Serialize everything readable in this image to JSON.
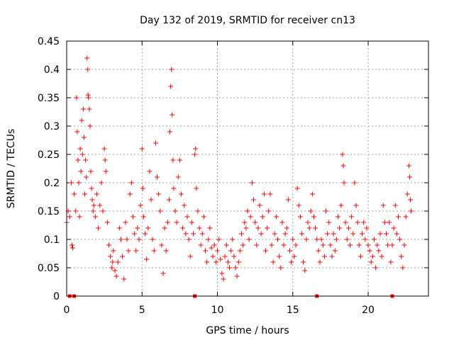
{
  "chart_data": {
    "type": "scatter",
    "title": "Day 132 of 2019, SRMTID for receiver cn13",
    "xlabel": "GPS time / hours",
    "ylabel": "SRMTID / TECUs",
    "xlim": [
      0,
      24
    ],
    "ylim": [
      0,
      0.45
    ],
    "xticks": [
      0,
      5,
      10,
      15,
      20
    ],
    "yticks": [
      0,
      0.05,
      0.1,
      0.15,
      0.2,
      0.25,
      0.3,
      0.35,
      0.4,
      0.45
    ],
    "xtick_labels": [
      "0",
      "5",
      "10",
      "15",
      "20"
    ],
    "ytick_labels": [
      "0",
      "0.05",
      "0.1",
      "0.15",
      "0.2",
      "0.25",
      "0.3",
      "0.35",
      "0.4",
      "0.45"
    ],
    "grid": true,
    "legend": false,
    "color": "#ff0000",
    "series": [
      {
        "name": "SRMTID",
        "marker": "plus",
        "points": [
          [
            0.0,
            0.13
          ],
          [
            0.1,
            0.15
          ],
          [
            0.2,
            0.14
          ],
          [
            0.3,
            0.2
          ],
          [
            0.35,
            0.09
          ],
          [
            0.4,
            0.085
          ],
          [
            0.5,
            0.18
          ],
          [
            0.6,
            0.15
          ],
          [
            0.65,
            0.35
          ],
          [
            0.7,
            0.29
          ],
          [
            0.75,
            0.24
          ],
          [
            0.8,
            0.2
          ],
          [
            0.85,
            0.14
          ],
          [
            0.9,
            0.26
          ],
          [
            0.95,
            0.22
          ],
          [
            1.0,
            0.31
          ],
          [
            1.05,
            0.25
          ],
          [
            1.1,
            0.33
          ],
          [
            1.15,
            0.28
          ],
          [
            1.2,
            0.18
          ],
          [
            1.25,
            0.24
          ],
          [
            1.3,
            0.21
          ],
          [
            1.35,
            0.42
          ],
          [
            1.4,
            0.4
          ],
          [
            1.42,
            0.355
          ],
          [
            1.45,
            0.35
          ],
          [
            1.5,
            0.33
          ],
          [
            1.55,
            0.3
          ],
          [
            1.6,
            0.22
          ],
          [
            1.65,
            0.19
          ],
          [
            1.7,
            0.17
          ],
          [
            1.75,
            0.15
          ],
          [
            1.8,
            0.16
          ],
          [
            1.9,
            0.14
          ],
          [
            2.0,
            0.18
          ],
          [
            2.1,
            0.12
          ],
          [
            2.2,
            0.16
          ],
          [
            2.3,
            0.2
          ],
          [
            2.4,
            0.15
          ],
          [
            2.5,
            0.26
          ],
          [
            2.55,
            0.24
          ],
          [
            2.6,
            0.22
          ],
          [
            2.7,
            0.13
          ],
          [
            2.8,
            0.09
          ],
          [
            2.9,
            0.07
          ],
          [
            3.0,
            0.05
          ],
          [
            3.05,
            0.06
          ],
          [
            3.1,
            0.08
          ],
          [
            3.2,
            0.045
          ],
          [
            3.3,
            0.035
          ],
          [
            3.4,
            0.06
          ],
          [
            3.5,
            0.12
          ],
          [
            3.6,
            0.1
          ],
          [
            3.7,
            0.07
          ],
          [
            3.8,
            0.03
          ],
          [
            3.9,
            0.13
          ],
          [
            4.0,
            0.1
          ],
          [
            4.1,
            0.08
          ],
          [
            4.2,
            0.18
          ],
          [
            4.3,
            0.2
          ],
          [
            4.4,
            0.14
          ],
          [
            4.5,
            0.11
          ],
          [
            4.6,
            0.08
          ],
          [
            4.7,
            0.12
          ],
          [
            4.8,
            0.1
          ],
          [
            4.9,
            0.16
          ],
          [
            5.0,
            0.26
          ],
          [
            5.05,
            0.19
          ],
          [
            5.1,
            0.14
          ],
          [
            5.2,
            0.11
          ],
          [
            5.3,
            0.065
          ],
          [
            5.4,
            0.12
          ],
          [
            5.5,
            0.22
          ],
          [
            5.6,
            0.17
          ],
          [
            5.7,
            0.1
          ],
          [
            5.8,
            0.08
          ],
          [
            5.9,
            0.27
          ],
          [
            6.0,
            0.21
          ],
          [
            6.1,
            0.18
          ],
          [
            6.2,
            0.15
          ],
          [
            6.3,
            0.09
          ],
          [
            6.4,
            0.04
          ],
          [
            6.5,
            0.12
          ],
          [
            6.6,
            0.08
          ],
          [
            6.7,
            0.13
          ],
          [
            6.8,
            0.17
          ],
          [
            6.85,
            0.29
          ],
          [
            6.9,
            0.37
          ],
          [
            6.95,
            0.4
          ],
          [
            7.0,
            0.32
          ],
          [
            7.05,
            0.24
          ],
          [
            7.1,
            0.19
          ],
          [
            7.2,
            0.15
          ],
          [
            7.3,
            0.13
          ],
          [
            7.4,
            0.21
          ],
          [
            7.5,
            0.24
          ],
          [
            7.6,
            0.18
          ],
          [
            7.7,
            0.12
          ],
          [
            7.8,
            0.16
          ],
          [
            7.9,
            0.11
          ],
          [
            8.0,
            0.14
          ],
          [
            8.1,
            0.1
          ],
          [
            8.2,
            0.07
          ],
          [
            8.3,
            0.13
          ],
          [
            8.4,
            0.11
          ],
          [
            8.5,
            0.25
          ],
          [
            8.55,
            0.26
          ],
          [
            8.6,
            0.19
          ],
          [
            8.7,
            0.15
          ],
          [
            8.8,
            0.12
          ],
          [
            8.9,
            0.09
          ],
          [
            9.0,
            0.11
          ],
          [
            9.1,
            0.14
          ],
          [
            9.2,
            0.08
          ],
          [
            9.3,
            0.06
          ],
          [
            9.4,
            0.1
          ],
          [
            9.5,
            0.12
          ],
          [
            9.6,
            0.085
          ],
          [
            9.7,
            0.07
          ],
          [
            9.8,
            0.09
          ],
          [
            9.9,
            0.06
          ],
          [
            10.0,
            0.08
          ],
          [
            10.1,
            0.1
          ],
          [
            10.2,
            0.065
          ],
          [
            10.3,
            0.04
          ],
          [
            10.4,
            0.03
          ],
          [
            10.5,
            0.07
          ],
          [
            10.6,
            0.09
          ],
          [
            10.7,
            0.06
          ],
          [
            10.8,
            0.05
          ],
          [
            10.9,
            0.08
          ],
          [
            11.0,
            0.1
          ],
          [
            11.1,
            0.07
          ],
          [
            11.2,
            0.05
          ],
          [
            11.3,
            0.035
          ],
          [
            11.4,
            0.06
          ],
          [
            11.5,
            0.08
          ],
          [
            11.6,
            0.11
          ],
          [
            11.7,
            0.09
          ],
          [
            11.8,
            0.13
          ],
          [
            11.9,
            0.12
          ],
          [
            12.0,
            0.15
          ],
          [
            12.1,
            0.1
          ],
          [
            12.2,
            0.14
          ],
          [
            12.3,
            0.2
          ],
          [
            12.4,
            0.17
          ],
          [
            12.5,
            0.13
          ],
          [
            12.6,
            0.09
          ],
          [
            12.7,
            0.12
          ],
          [
            12.8,
            0.16
          ],
          [
            12.9,
            0.11
          ],
          [
            13.0,
            0.14
          ],
          [
            13.1,
            0.18
          ],
          [
            13.2,
            0.08
          ],
          [
            13.3,
            0.12
          ],
          [
            13.4,
            0.15
          ],
          [
            13.5,
            0.18
          ],
          [
            13.6,
            0.09
          ],
          [
            13.7,
            0.06
          ],
          [
            13.8,
            0.11
          ],
          [
            13.9,
            0.14
          ],
          [
            14.0,
            0.1
          ],
          [
            14.1,
            0.07
          ],
          [
            14.2,
            0.05
          ],
          [
            14.3,
            0.13
          ],
          [
            14.4,
            0.09
          ],
          [
            14.5,
            0.11
          ],
          [
            14.6,
            0.12
          ],
          [
            14.7,
            0.17
          ],
          [
            14.8,
            0.08
          ],
          [
            14.9,
            0.06
          ],
          [
            15.0,
            0.1
          ],
          [
            15.1,
            0.07
          ],
          [
            15.2,
            0.09
          ],
          [
            15.3,
            0.19
          ],
          [
            15.4,
            0.16
          ],
          [
            15.5,
            0.14
          ],
          [
            15.6,
            0.11
          ],
          [
            15.7,
            0.06
          ],
          [
            15.8,
            0.045
          ],
          [
            15.9,
            0.1
          ],
          [
            16.0,
            0.13
          ],
          [
            16.1,
            0.12
          ],
          [
            16.2,
            0.15
          ],
          [
            16.3,
            0.18
          ],
          [
            16.4,
            0.14
          ],
          [
            16.5,
            0.12
          ],
          [
            16.6,
            0.1
          ],
          [
            16.7,
            0.08
          ],
          [
            16.8,
            0.06
          ],
          [
            16.9,
            0.1
          ],
          [
            17.0,
            0.09
          ],
          [
            17.1,
            0.07
          ],
          [
            17.2,
            0.15
          ],
          [
            17.3,
            0.11
          ],
          [
            17.4,
            0.13
          ],
          [
            17.5,
            0.09
          ],
          [
            17.6,
            0.07
          ],
          [
            17.7,
            0.11
          ],
          [
            17.8,
            0.08
          ],
          [
            17.9,
            0.1
          ],
          [
            18.0,
            0.14
          ],
          [
            18.1,
            0.12
          ],
          [
            18.2,
            0.16
          ],
          [
            18.3,
            0.25
          ],
          [
            18.35,
            0.23
          ],
          [
            18.4,
            0.2
          ],
          [
            18.5,
            0.13
          ],
          [
            18.6,
            0.1
          ],
          [
            18.7,
            0.12
          ],
          [
            18.8,
            0.09
          ],
          [
            18.9,
            0.14
          ],
          [
            19.0,
            0.11
          ],
          [
            19.1,
            0.2
          ],
          [
            19.2,
            0.16
          ],
          [
            19.3,
            0.13
          ],
          [
            19.4,
            0.09
          ],
          [
            19.5,
            0.07
          ],
          [
            19.6,
            0.11
          ],
          [
            19.7,
            0.13
          ],
          [
            19.8,
            0.1
          ],
          [
            19.9,
            0.12
          ],
          [
            20.0,
            0.09
          ],
          [
            20.1,
            0.08
          ],
          [
            20.2,
            0.06
          ],
          [
            20.3,
            0.07
          ],
          [
            20.4,
            0.1
          ],
          [
            20.5,
            0.05
          ],
          [
            20.6,
            0.09
          ],
          [
            20.7,
            0.08
          ],
          [
            20.8,
            0.11
          ],
          [
            20.9,
            0.07
          ],
          [
            21.0,
            0.16
          ],
          [
            21.1,
            0.13
          ],
          [
            21.2,
            0.11
          ],
          [
            21.3,
            0.09
          ],
          [
            21.4,
            0.13
          ],
          [
            21.5,
            0.06
          ],
          [
            21.6,
            0.09
          ],
          [
            21.7,
            0.12
          ],
          [
            21.8,
            0.16
          ],
          [
            21.9,
            0.11
          ],
          [
            22.0,
            0.14
          ],
          [
            22.1,
            0.1
          ],
          [
            22.2,
            0.07
          ],
          [
            22.3,
            0.05
          ],
          [
            22.4,
            0.09
          ],
          [
            22.5,
            0.14
          ],
          [
            22.6,
            0.18
          ],
          [
            22.7,
            0.23
          ],
          [
            22.75,
            0.21
          ],
          [
            22.8,
            0.17
          ],
          [
            22.85,
            0.15
          ]
        ]
      },
      {
        "name": "zero markers",
        "marker": "square",
        "points": [
          [
            0.2,
            0
          ],
          [
            0.5,
            0
          ],
          [
            8.5,
            0
          ],
          [
            16.6,
            0
          ],
          [
            21.6,
            0
          ]
        ]
      }
    ]
  }
}
